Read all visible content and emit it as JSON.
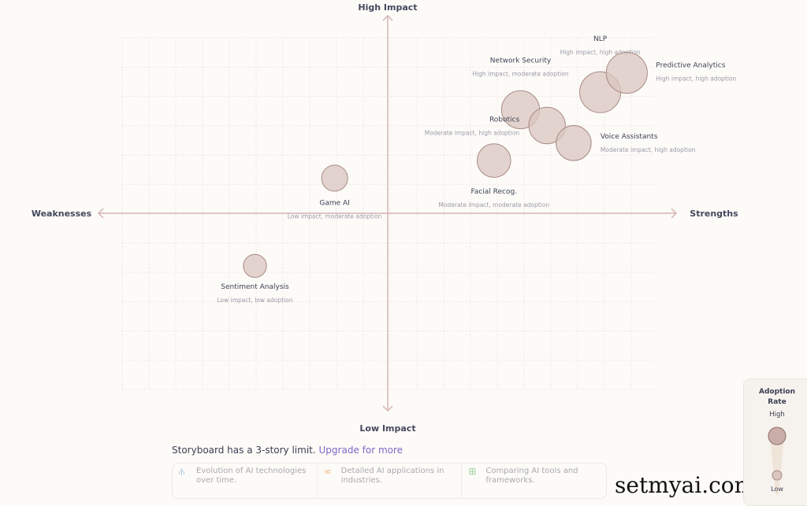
{
  "chart_data": {
    "type": "scatter",
    "variant": "bubble quadrant",
    "axes": {
      "top": "High Impact",
      "bottom": "Low Impact",
      "left": "Weaknesses",
      "right": "Strengths"
    },
    "xlim": [
      -100,
      100
    ],
    "ylim": [
      -100,
      100
    ],
    "grid": true,
    "points": [
      {
        "name": "NLP",
        "desc": "High impact, high adoption",
        "x": 80,
        "y": 69,
        "adoption": 95
      },
      {
        "name": "Predictive Analytics",
        "desc": "High impact, high adoption",
        "x": 90,
        "y": 80,
        "adoption": 95
      },
      {
        "name": "Network Security",
        "desc": "High impact, moderate adoption",
        "x": 50,
        "y": 59,
        "adoption": 85
      },
      {
        "name": "Robotics",
        "desc": "Moderate impact, high adoption",
        "x": 60,
        "y": 50,
        "adoption": 80
      },
      {
        "name": "Voice Assistants",
        "desc": "Moderate impact, high adoption",
        "x": 70,
        "y": 40,
        "adoption": 75
      },
      {
        "name": "Facial Recog.",
        "desc": "Moderate impact, moderate adoption",
        "x": 40,
        "y": 30,
        "adoption": 70
      },
      {
        "name": "Game AI",
        "desc": "Low impact, moderate adoption",
        "x": -20,
        "y": 20,
        "adoption": 45
      },
      {
        "name": "Sentiment Analysis",
        "desc": "Low impact, low adoption",
        "x": -50,
        "y": -30,
        "adoption": 35
      }
    ],
    "colors": {
      "bubble": "#d9c6c0",
      "bubble_stroke": "#a88a84",
      "axis": "#d4b5b3",
      "grid": "#efe6e3"
    }
  },
  "footer": {
    "limit_text": "Storyboard has a 3-story limit.",
    "upgrade_link": "Upgrade for more",
    "cards": [
      {
        "icon": "timeline-icon",
        "text": "Evolution of AI technologies over time."
      },
      {
        "icon": "network-icon",
        "text": "Detailed AI applications in industries."
      },
      {
        "icon": "grid-icon",
        "text": "Comparing AI tools and frameworks."
      }
    ]
  },
  "legend": {
    "title": "Adoption Rate",
    "high": "High",
    "low": "Low"
  },
  "watermark": "setmyai.com"
}
